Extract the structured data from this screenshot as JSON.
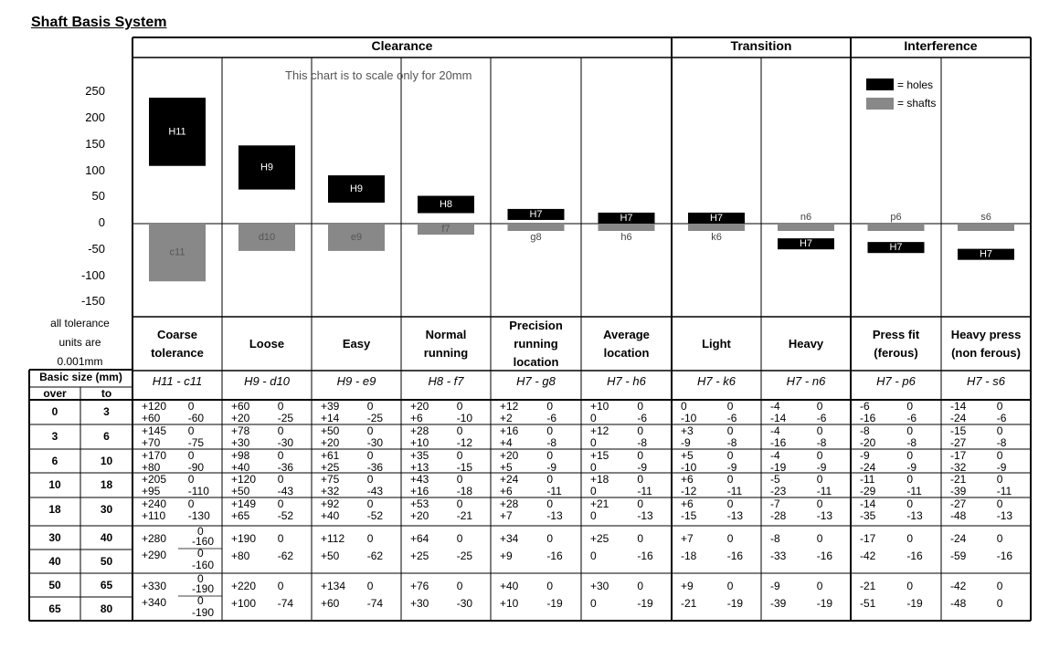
{
  "title": "Shaft Basis System",
  "groups": [
    "Clearance",
    "Transition",
    "Interference"
  ],
  "scale_note": "This chart is to scale only for 20mm",
  "legend": [
    {
      "label": "= holes",
      "color": "#000000"
    },
    {
      "label": "= shafts",
      "color": "#888888"
    }
  ],
  "units_note": [
    "all tolerance",
    "units are",
    "0.001mm"
  ],
  "table_header": {
    "basic_size": "Basic size (mm)",
    "over": "over",
    "to": "to"
  },
  "fits": [
    {
      "name": "Coarse tolerance",
      "code": "H11 - c11"
    },
    {
      "name": "Loose",
      "code": "H9 - d10"
    },
    {
      "name": "Easy",
      "code": "H9 - e9"
    },
    {
      "name": "Normal running",
      "code": "H8 - f7"
    },
    {
      "name": "Precision running location",
      "code": "H7 - g8"
    },
    {
      "name": "Average location",
      "code": "H7 - h6"
    },
    {
      "name": "Light",
      "code": "H7 - k6"
    },
    {
      "name": "Heavy",
      "code": "H7 - n6"
    },
    {
      "name": "Press fit (ferous)",
      "code": "H7 - p6"
    },
    {
      "name": "Heavy press (non ferous)",
      "code": "H7 - s6"
    }
  ],
  "chart_data": {
    "type": "bar",
    "ylim": [
      -150,
      250
    ],
    "yticks": [
      250,
      200,
      150,
      100,
      50,
      0,
      -50,
      -100,
      -150
    ],
    "series": [
      {
        "name": "holes",
        "color": "#000000",
        "bars": [
          {
            "label": "H11",
            "low": 110,
            "high": 240
          },
          {
            "label": "H9",
            "low": 65,
            "high": 149
          },
          {
            "label": "H9",
            "low": 40,
            "high": 92
          },
          {
            "label": "H8",
            "low": 20,
            "high": 53
          },
          {
            "label": "H7",
            "low": 7,
            "high": 28
          },
          {
            "label": "H7",
            "low": 0,
            "high": 21
          },
          {
            "label": "H7",
            "low": 0,
            "high": 21
          },
          {
            "label": "H7",
            "low": -49,
            "high": -28
          },
          {
            "label": "H7",
            "low": -56,
            "high": -35
          },
          {
            "label": "H7",
            "low": -69,
            "high": -48
          }
        ]
      },
      {
        "name": "shafts",
        "color": "#888888",
        "bars": [
          {
            "label": "c11",
            "low": -110,
            "high": 0
          },
          {
            "label": "d10",
            "low": -52,
            "high": 0
          },
          {
            "label": "e9",
            "low": -52,
            "high": 0
          },
          {
            "label": "f7",
            "low": -21,
            "high": 0
          },
          {
            "label": "g8",
            "low": -13,
            "high": 0
          },
          {
            "label": "h6",
            "low": -13,
            "high": 0
          },
          {
            "label": "k6",
            "low": -13,
            "high": 0
          },
          {
            "label": "n6",
            "low": -13,
            "high": 0
          },
          {
            "label": "p6",
            "low": -13,
            "high": 0
          },
          {
            "label": "s6",
            "low": -13,
            "high": 0
          }
        ]
      }
    ]
  },
  "rows": [
    {
      "size": [
        "0",
        "3"
      ],
      "cells": [
        [
          "+120",
          "0",
          "+60",
          "-60"
        ],
        [
          "+60",
          "0",
          "+20",
          "-25"
        ],
        [
          "+39",
          "0",
          "+14",
          "-25"
        ],
        [
          "+20",
          "0",
          "+6",
          "-10"
        ],
        [
          "+12",
          "0",
          "+2",
          "-6"
        ],
        [
          "+10",
          "0",
          "0",
          "-6"
        ],
        [
          "0",
          "0",
          "-10",
          "-6"
        ],
        [
          "-4",
          "0",
          "-14",
          "-6"
        ],
        [
          "-6",
          "0",
          "-16",
          "-6"
        ],
        [
          "-14",
          "0",
          "-24",
          "-6"
        ]
      ]
    },
    {
      "size": [
        "3",
        "6"
      ],
      "cells": [
        [
          "+145",
          "0",
          "+70",
          "-75"
        ],
        [
          "+78",
          "0",
          "+30",
          "-30"
        ],
        [
          "+50",
          "0",
          "+20",
          "-30"
        ],
        [
          "+28",
          "0",
          "+10",
          "-12"
        ],
        [
          "+16",
          "0",
          "+4",
          "-8"
        ],
        [
          "+12",
          "0",
          "0",
          "-8"
        ],
        [
          "+3",
          "0",
          "-9",
          "-8"
        ],
        [
          "-4",
          "0",
          "-16",
          "-8"
        ],
        [
          "-8",
          "0",
          "-20",
          "-8"
        ],
        [
          "-15",
          "0",
          "-27",
          "-8"
        ]
      ]
    },
    {
      "size": [
        "6",
        "10"
      ],
      "cells": [
        [
          "+170",
          "0",
          "+80",
          "-90"
        ],
        [
          "+98",
          "0",
          "+40",
          "-36"
        ],
        [
          "+61",
          "0",
          "+25",
          "-36"
        ],
        [
          "+35",
          "0",
          "+13",
          "-15"
        ],
        [
          "+20",
          "0",
          "+5",
          "-9"
        ],
        [
          "+15",
          "0",
          "0",
          "-9"
        ],
        [
          "+5",
          "0",
          "-10",
          "-9"
        ],
        [
          "-4",
          "0",
          "-19",
          "-9"
        ],
        [
          "-9",
          "0",
          "-24",
          "-9"
        ],
        [
          "-17",
          "0",
          "-32",
          "-9"
        ]
      ]
    },
    {
      "size": [
        "10",
        "18"
      ],
      "cells": [
        [
          "+205",
          "0",
          "+95",
          "-110"
        ],
        [
          "+120",
          "0",
          "+50",
          "-43"
        ],
        [
          "+75",
          "0",
          "+32",
          "-43"
        ],
        [
          "+43",
          "0",
          "+16",
          "-18"
        ],
        [
          "+24",
          "0",
          "+6",
          "-11"
        ],
        [
          "+18",
          "0",
          "0",
          "-11"
        ],
        [
          "+6",
          "0",
          "-12",
          "-11"
        ],
        [
          "-5",
          "0",
          "-23",
          "-11"
        ],
        [
          "-11",
          "0",
          "-29",
          "-11"
        ],
        [
          "-21",
          "0",
          "-39",
          "-11"
        ]
      ]
    },
    {
      "size": [
        "18",
        "30"
      ],
      "cells": [
        [
          "+240",
          "0",
          "+110",
          "-130"
        ],
        [
          "+149",
          "0",
          "+65",
          "-52"
        ],
        [
          "+92",
          "0",
          "+40",
          "-52"
        ],
        [
          "+53",
          "0",
          "+20",
          "-21"
        ],
        [
          "+28",
          "0",
          "+7",
          "-13"
        ],
        [
          "+21",
          "0",
          "0",
          "-13"
        ],
        [
          "+6",
          "0",
          "-15",
          "-13"
        ],
        [
          "-7",
          "0",
          "-28",
          "-13"
        ],
        [
          "-14",
          "0",
          "-35",
          "-13"
        ],
        [
          "-27",
          "0",
          "-48",
          "-13"
        ]
      ]
    }
  ],
  "group_rows": [
    {
      "sizes": [
        [
          "30",
          "40"
        ],
        [
          "40",
          "50"
        ]
      ],
      "c11_zero_top": "0",
      "c11_mid": "-160",
      "c11_zero_mid": "0",
      "c11_bottom": "-160",
      "c11_plus": [
        "+280",
        "+290"
      ],
      "cells": [
        [
          "+190",
          "0",
          "+80",
          "-62"
        ],
        [
          "+112",
          "0",
          "+50",
          "-62"
        ],
        [
          "+64",
          "0",
          "+25",
          "-25"
        ],
        [
          "+34",
          "0",
          "+9",
          "-16"
        ],
        [
          "+25",
          "0",
          "0",
          "-16"
        ],
        [
          "+7",
          "0",
          "-18",
          "-16"
        ],
        [
          "-8",
          "0",
          "-33",
          "-16"
        ],
        [
          "-17",
          "0",
          "-42",
          "-16"
        ],
        [
          "-24",
          "0",
          "-59",
          "-16"
        ]
      ]
    },
    {
      "sizes": [
        [
          "50",
          "65"
        ],
        [
          "65",
          "80"
        ]
      ],
      "c11_zero_top": "0",
      "c11_mid": "-190",
      "c11_zero_mid": "0",
      "c11_bottom": "-190",
      "c11_plus": [
        "+330",
        "+340"
      ],
      "cells": [
        [
          "+220",
          "0",
          "+100",
          "-74"
        ],
        [
          "+134",
          "0",
          "+60",
          "-74"
        ],
        [
          "+76",
          "0",
          "+30",
          "-30"
        ],
        [
          "+40",
          "0",
          "+10",
          "-19"
        ],
        [
          "+30",
          "0",
          "0",
          "-19"
        ],
        [
          "+9",
          "0",
          "-21",
          "-19"
        ],
        [
          "-9",
          "0",
          "-39",
          "-19"
        ],
        [
          "-21",
          "0",
          "-51",
          "-19"
        ],
        [
          "-42",
          "0",
          "-48",
          "0"
        ]
      ]
    }
  ]
}
